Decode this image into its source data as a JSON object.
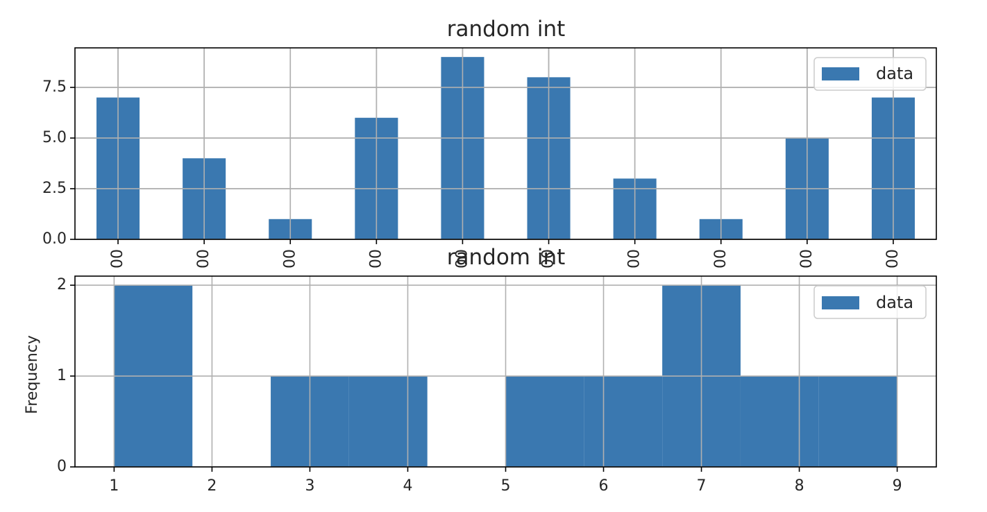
{
  "chart_data": [
    {
      "type": "bar",
      "title": "random int",
      "categories": [
        "00",
        "00",
        "00",
        "00",
        "00",
        "00",
        "00",
        "00",
        "00",
        "00"
      ],
      "series": [
        {
          "name": "data",
          "values": [
            7,
            4,
            1,
            6,
            9,
            8,
            3,
            1,
            5,
            7
          ]
        }
      ],
      "ylim": [
        0,
        9.45
      ],
      "yticks": [
        0.0,
        2.5,
        5.0,
        7.5
      ],
      "ytick_labels": [
        "0.0",
        "2.5",
        "5.0",
        "7.5"
      ],
      "grid": true,
      "legend": "top-right",
      "color": "#3a78b0"
    },
    {
      "type": "histogram",
      "title": "random int",
      "ylabel": "Frequency",
      "series": [
        {
          "name": "data"
        }
      ],
      "bins": [
        {
          "start": 1.0,
          "end": 1.8,
          "count": 2
        },
        {
          "start": 1.8,
          "end": 2.6,
          "count": 0
        },
        {
          "start": 2.6,
          "end": 3.4,
          "count": 1
        },
        {
          "start": 3.4,
          "end": 4.2,
          "count": 1
        },
        {
          "start": 4.2,
          "end": 5.0,
          "count": 0
        },
        {
          "start": 5.0,
          "end": 5.8,
          "count": 1
        },
        {
          "start": 5.8,
          "end": 6.6,
          "count": 1
        },
        {
          "start": 6.6,
          "end": 7.4,
          "count": 2
        },
        {
          "start": 7.4,
          "end": 8.2,
          "count": 1
        },
        {
          "start": 8.2,
          "end": 9.0,
          "count": 1
        }
      ],
      "xlim": [
        0.6,
        9.4
      ],
      "ylim": [
        0,
        2.1
      ],
      "xticks": [
        1,
        2,
        3,
        4,
        5,
        6,
        7,
        8,
        9
      ],
      "xtick_labels": [
        "1",
        "2",
        "3",
        "4",
        "5",
        "6",
        "7",
        "8",
        "9"
      ],
      "yticks": [
        0,
        1,
        2
      ],
      "ytick_labels": [
        "0",
        "1",
        "2"
      ],
      "grid": true,
      "legend": "top-right",
      "color": "#3a78b0"
    }
  ]
}
